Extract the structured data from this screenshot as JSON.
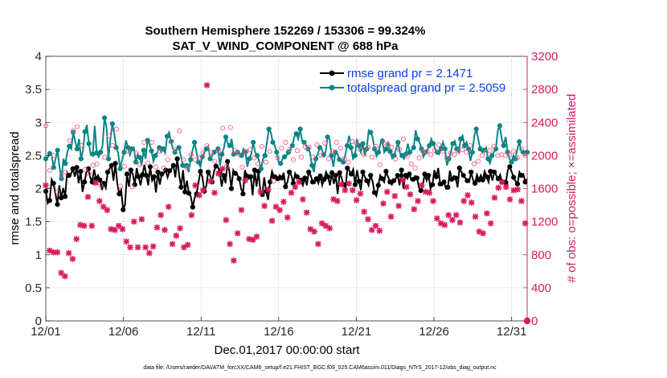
{
  "chart_data": {
    "type": "line",
    "title": "Southern Hemisphere 152269 / 153306 = 99.324%",
    "subtitle": "SAT_V_WIND_COMPONENT @ 688 hPa",
    "xlabel": "Dec.01,2017 00:00:00 start",
    "ylabel_left": "rmse and totalspread",
    "ylabel_right": "# of obs: o=possible; ×=assimilated",
    "xlim": [
      0,
      31
    ],
    "ylim_left": [
      0,
      4
    ],
    "ylim_right": [
      0,
      3200
    ],
    "x_ticks": [
      {
        "x": 0,
        "label": "12/01"
      },
      {
        "x": 5,
        "label": "12/06"
      },
      {
        "x": 10,
        "label": "12/11"
      },
      {
        "x": 15,
        "label": "12/16"
      },
      {
        "x": 20,
        "label": "12/21"
      },
      {
        "x": 25,
        "label": "12/26"
      },
      {
        "x": 30,
        "label": "12/31"
      }
    ],
    "y_ticks_left": [
      "0",
      "0.5",
      "1",
      "1.5",
      "2",
      "2.5",
      "3",
      "3.5",
      "4"
    ],
    "y_ticks_right": [
      "0",
      "400",
      "800",
      "1200",
      "1600",
      "2000",
      "2400",
      "2800",
      "3200"
    ],
    "legend": {
      "position": "top-right",
      "entries": [
        "rmse grand pr = 2.1471",
        "totalspread grand pr = 2.5059"
      ]
    },
    "footer": "data file: /Users/raeder/DAI/ATM_forcXX/CAM6_setup/f.e21.FHIST_BGC.f09_025.CAM6assim.011/Diags_NTrS_2017-12/obs_diag_output.nc",
    "series": [
      {
        "name": "rmse",
        "color": "#000000",
        "axis": "left",
        "values": [
          1.96,
          1.78,
          1.82,
          2.14,
          2.08,
          1.92,
          1.76,
          2.05,
          1.86,
          2.01,
          1.88,
          2.24,
          2.2,
          2.22,
          2.3,
          2.18,
          2.32,
          2.08,
          2.26,
          1.95,
          2.1,
          2.25,
          2.3,
          2.17,
          2.1,
          2.29,
          2.15,
          2.2,
          2.13,
          1.98,
          2.08,
          2.01,
          2.25,
          2.3,
          2.35,
          2.12,
          2.38,
          2.07,
          1.92,
          1.98,
          1.68,
          1.76,
          2.22,
          2.03,
          2.28,
          2.22,
          2.06,
          2.31,
          2.18,
          2.05,
          2.21,
          2.36,
          2.2,
          2.05,
          2.33,
          2.12,
          2.18,
          1.94,
          2.25,
          2.06,
          2.22,
          2.23,
          2.28,
          2.17,
          2.27,
          2.3,
          2.35,
          2.17,
          2.45,
          2.2,
          2.02,
          2.28,
          1.95,
          2.12,
          1.93,
          1.88,
          1.72,
          1.86,
          1.92,
          2.09,
          2.26,
          2.17,
          1.96,
          2.04,
          2.25,
          2.2,
          2.1,
          2.26,
          2.34,
          2.33,
          2.25,
          2.03,
          2.2,
          2.08,
          2.41,
          2.25,
          2.0,
          2.28,
          2.23,
          2.21,
          2.15,
          2.0,
          1.92,
          2.28,
          2.19,
          2.15,
          2.18,
          1.9,
          2.28,
          2.03,
          2.26,
          1.96,
          1.91,
          2.17,
          1.96,
          1.83,
          2.1,
          2.26,
          2.18,
          2.2,
          2.15,
          2.2,
          2.16,
          2.24,
          2.03,
          2.1,
          2.25,
          2.2,
          2.08,
          2.23,
          2.18,
          2.15,
          2.13,
          2.05,
          2.16,
          2.05,
          2.25,
          2.2,
          2.1,
          2.08,
          2.15,
          2.08,
          2.19,
          2.05,
          2.14,
          2.25,
          2.18,
          2.05,
          2.24,
          2.07,
          2.2,
          1.92,
          2.24,
          2.16,
          2.06,
          2.0,
          2.31,
          2.27,
          2.22,
          2.29,
          2.06,
          2.28,
          2.11,
          1.98,
          2.25,
          2.18,
          2.12,
          2.05,
          2.2,
          2.11,
          1.94,
          1.89,
          2.05,
          2.2,
          2.15,
          2.1,
          2.26,
          2.18,
          2.1,
          2.06,
          2.12,
          2.15,
          2.2,
          2.05,
          2.28,
          2.0,
          2.2,
          2.15,
          2.22,
          2.13,
          2.14,
          2.19,
          2.16,
          2.02,
          1.97,
          2.05,
          2.22,
          2.12,
          2.2,
          2.0,
          2.06,
          2.28,
          2.18,
          2.31,
          2.07,
          2.05,
          2.1,
          2.0,
          2.02,
          2.27,
          2.14,
          2.19,
          2.16,
          2.02,
          2.31,
          2.25,
          2.2,
          2.16,
          2.12,
          2.1,
          2.25,
          2.13,
          2.08,
          2.21,
          2.13,
          2.2,
          2.13,
          2.26,
          2.18,
          2.1,
          2.26,
          2.12,
          2.25,
          2.2,
          2.15,
          2.21,
          2.1,
          2.12,
          2.09,
          2.28,
          2.33,
          2.25,
          2.17,
          2.11,
          2.07,
          2.25,
          2.2,
          2.22,
          2.1,
          2.15
        ]
      },
      {
        "name": "totalspread",
        "color": "#0a8585",
        "axis": "left",
        "values": [
          2.45,
          2.47,
          2.53,
          2.5,
          2.32,
          2.45,
          2.58,
          2.33,
          2.15,
          2.45,
          2.38,
          2.55,
          2.64,
          2.6,
          2.85,
          2.72,
          2.6,
          2.75,
          2.45,
          2.58,
          2.86,
          2.96,
          2.68,
          2.51,
          2.52,
          2.95,
          2.54,
          2.48,
          2.55,
          2.65,
          3.07,
          2.93,
          2.45,
          2.75,
          2.98,
          2.83,
          2.62,
          2.54,
          2.3,
          2.44,
          2.55,
          2.73,
          2.62,
          2.51,
          2.6,
          2.62,
          2.4,
          2.52,
          2.47,
          2.35,
          2.58,
          2.45,
          2.73,
          2.67,
          2.57,
          2.41,
          2.5,
          2.55,
          2.62,
          2.55,
          2.6,
          2.54,
          2.79,
          2.85,
          2.71,
          2.6,
          2.55,
          2.61,
          2.62,
          2.5,
          2.35,
          2.32,
          2.35,
          2.25,
          2.44,
          2.58,
          2.7,
          2.55,
          2.4,
          2.33,
          2.48,
          2.55,
          2.6,
          2.64,
          2.45,
          2.5,
          2.55,
          2.58,
          2.6,
          2.35,
          2.52,
          2.61,
          2.78,
          2.68,
          2.65,
          2.75,
          2.52,
          2.55,
          2.55,
          2.53,
          2.5,
          2.6,
          2.55,
          2.33,
          2.45,
          2.52,
          2.7,
          2.55,
          2.5,
          2.42,
          2.3,
          2.45,
          2.5,
          2.7,
          2.9,
          2.85,
          2.7,
          2.65,
          2.55,
          2.4,
          2.38,
          2.45,
          2.48,
          2.5,
          2.55,
          2.6,
          2.65,
          2.78,
          2.83,
          2.75,
          2.9,
          2.72,
          2.7,
          2.65,
          2.6,
          2.55,
          2.35,
          2.25,
          2.45,
          2.53,
          2.62,
          2.6,
          2.51,
          2.55,
          2.78,
          2.75,
          2.5,
          2.33,
          2.55,
          2.53,
          2.44,
          2.43,
          2.4,
          2.5,
          2.65,
          2.8,
          2.62,
          2.45,
          2.5,
          2.75,
          2.65,
          2.55,
          2.68,
          2.5,
          2.6,
          2.88,
          2.85,
          2.78,
          2.6,
          2.49,
          2.55,
          2.68,
          2.72,
          2.55,
          2.6,
          2.71,
          2.56,
          2.46,
          2.5,
          2.6,
          2.7,
          2.54,
          2.5,
          2.45,
          2.52,
          2.68,
          2.55,
          2.58,
          2.62,
          2.88,
          2.75,
          2.7,
          2.6,
          2.48,
          2.55,
          2.58,
          2.65,
          2.75,
          2.68,
          2.6,
          2.55,
          2.52,
          2.6,
          2.7,
          2.6,
          2.35,
          2.45,
          2.55,
          2.68,
          2.72,
          2.6,
          2.55,
          2.75,
          2.8,
          2.65,
          2.7,
          2.6,
          2.42,
          2.55,
          2.8,
          2.9,
          2.75,
          2.6,
          2.55,
          2.58,
          2.62,
          2.45,
          2.38,
          2.5,
          2.55,
          2.6,
          2.88,
          2.95,
          2.75,
          2.65,
          2.78,
          2.55,
          2.45,
          2.4,
          2.5,
          2.45,
          2.6,
          2.71,
          2.55,
          2.55,
          2.52,
          2.55
        ]
      },
      {
        "name": "obs_possible",
        "color": "#ff5c8a",
        "axis": "right",
        "values": [
          2360,
          1760,
          1820,
          2160,
          2000,
          1960,
          1560,
          2080,
          1760,
          2010,
          1800,
          1930,
          2180,
          2210,
          2300,
          2080,
          2350,
          1980,
          2120,
          1930,
          1830,
          1810,
          1780,
          1960,
          1880,
          1880,
          1900,
          1920,
          1640,
          1820,
          1980,
          2340,
          2240,
          1890,
          2120,
          2050,
          2320,
          2110,
          1630,
          1900,
          1870,
          1900,
          2050,
          2300,
          1620,
          1810,
          2030,
          2040,
          1890,
          2200,
          2160,
          2120,
          1910,
          1950,
          2160,
          1960,
          1860,
          1550,
          2050,
          1950,
          1850,
          1760,
          1950,
          1910,
          2170,
          1850,
          2070,
          2400,
          2300,
          2400,
          1950,
          2120,
          1850,
          2050,
          2010,
          2010,
          1950,
          2040,
          1970,
          1860,
          2030,
          1900,
          2120,
          2220,
          2040,
          2100,
          1930,
          1900,
          2050,
          2140,
          2330,
          1940,
          1870,
          2100,
          2340,
          2210,
          2060,
          2130,
          2020,
          1950,
          1860,
          2220,
          2050,
          2210,
          2070,
          1880,
          1970,
          1950,
          1900,
          2150,
          2110,
          1850,
          1920,
          2180,
          2050,
          1930,
          1690,
          2180,
          1970,
          1970,
          2090,
          2120,
          2160,
          2260,
          2070,
          2200,
          1950,
          1940,
          2060,
          2200,
          1980,
          2110,
          2110,
          2080,
          2100,
          2000,
          1980,
          2200,
          2130,
          2030,
          2000,
          2020,
          2150,
          1970,
          1960,
          1940,
          2050,
          2020,
          2160,
          1980,
          2090,
          1940,
          1960,
          2080,
          1920,
          1900,
          2170,
          2190,
          2150,
          2250,
          2070,
          2150,
          2010,
          2180,
          2100,
          2030,
          1980,
          2180,
          2110,
          1980,
          1890,
          2070,
          2150,
          2110,
          2130,
          1980,
          2100,
          2100,
          1960,
          2080,
          2070,
          2020,
          2200,
          2020,
          1990,
          1960,
          1900,
          1880,
          1850,
          1830,
          1970,
          1910,
          2050,
          1980,
          2050,
          1960,
          2010,
          2050,
          2060,
          1990,
          2130,
          2210,
          2050,
          2010,
          1970,
          2000,
          2030,
          2160,
          2010,
          1980,
          2050,
          2030,
          2070,
          2000,
          2040,
          2150,
          2120,
          2140,
          1900,
          1960,
          1930,
          2020,
          2000,
          1930,
          2040,
          2060,
          2060,
          2040,
          2110,
          2080,
          2000,
          1970,
          2010,
          2150,
          2000,
          1950,
          2010,
          2040,
          2050,
          1990,
          1970,
          2010,
          2080,
          2020,
          2000,
          0
        ]
      },
      {
        "name": "obs_assimilated",
        "color": "#d81b60",
        "axis": "right",
        "values": [
          1640,
          1250,
          850,
          880,
          830,
          850,
          830,
          850,
          580,
          560,
          540,
          790,
          820,
          850,
          750,
          930,
          990,
          920,
          1160,
          1220,
          1150,
          1180,
          1500,
          1520,
          1150,
          1630,
          1670,
          1560,
          1450,
          1670,
          1380,
          1280,
          1340,
          1240,
          1110,
          1050,
          1100,
          1280,
          1150,
          1280,
          1110,
          1000,
          960,
          1010,
          890,
          1120,
          1200,
          1060,
          890,
          1110,
          1230,
          1130,
          890,
          1050,
          820,
          850,
          900,
          1010,
          1130,
          1280,
          1280,
          1040,
          1100,
          1310,
          1380,
          1120,
          930,
          1240,
          1030,
          1050,
          1120,
          1150,
          890,
          1050,
          920,
          1300,
          1280,
          1580,
          1640,
          1450,
          1520,
          1730,
          1580,
          1420,
          2850,
          2750,
          1690,
          1680,
          1550,
          1620,
          1780,
          1520,
          1840,
          1600,
          1220,
          980,
          930,
          700,
          730,
          920,
          1060,
          960,
          1340,
          1530,
          1700,
          1460,
          990,
          1030,
          980,
          1240,
          1020,
          1320,
          1560,
          1050,
          1390,
          1240,
          1590,
          1660,
          1210,
          1440,
          1380,
          1250,
          1340,
          1510,
          1440,
          1180,
          1250,
          1370,
          1550,
          1620,
          1620,
          1680,
          1680,
          1550,
          1470,
          1320,
          1310,
          1260,
          1110,
          1150,
          1080,
          950,
          930,
          1020,
          1180,
          1120,
          1150,
          1320,
          1120,
          1070,
          1470,
          1560,
          1450,
          1620,
          1650,
          1490,
          1580,
          1520,
          1660,
          1570,
          1580,
          1500,
          1460,
          1470,
          1540,
          1340,
          1320,
          1270,
          1230,
          1180,
          1100,
          1130,
          1150,
          1040,
          1090,
          1320,
          1420,
          1560,
          1560,
          1440,
          1260,
          1550,
          1510,
          1470,
          1390,
          1490,
          1700,
          1510,
          1620,
          1600,
          1530,
          1510,
          1350,
          1380,
          1450,
          1650,
          1640,
          1500,
          1560,
          1580,
          1550,
          1310,
          1450,
          1230,
          1240,
          1210,
          1180,
          1080,
          1160,
          1360,
          1280,
          1310,
          1220,
          1260,
          1280,
          1320,
          1190,
          1290,
          1450,
          1530,
          1520,
          1480,
          1430,
          1410,
          1260,
          1130,
          1080,
          1040,
          1060,
          1120,
          1300,
          1260,
          1180,
          1500,
          1490,
          1490,
          1610,
          1760,
          1680,
          1650,
          1620,
          1560,
          1470,
          1540,
          1580,
          1660,
          1590,
          1510,
          1450,
          1400,
          1180,
          0
        ]
      }
    ]
  }
}
